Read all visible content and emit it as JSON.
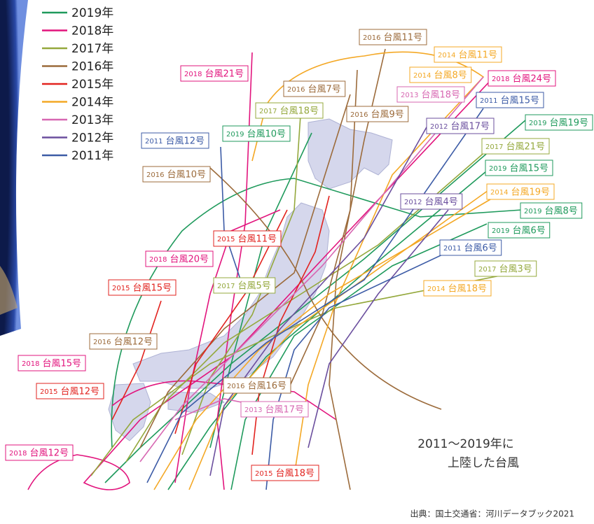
{
  "legend": {
    "items": [
      {
        "label": "2019年",
        "color": "#1f9a5c"
      },
      {
        "label": "2018年",
        "color": "#e2147d"
      },
      {
        "label": "2017年",
        "color": "#94a83c"
      },
      {
        "label": "2016年",
        "color": "#9c6b3b"
      },
      {
        "label": "2015年",
        "color": "#e2231f"
      },
      {
        "label": "2014年",
        "color": "#f4a825"
      },
      {
        "label": "2013年",
        "color": "#d767b2"
      },
      {
        "label": "2012年",
        "color": "#6b4f9e"
      },
      {
        "label": "2011年",
        "color": "#3c5ba6"
      }
    ]
  },
  "labels": [
    {
      "year": "2016",
      "name": "台風11号"
    },
    {
      "year": "2014",
      "name": "台風11号"
    },
    {
      "year": "2018",
      "name": "台風21号"
    },
    {
      "year": "2014",
      "name": "台風8号"
    },
    {
      "year": "2018",
      "name": "台風24号"
    },
    {
      "year": "2016",
      "name": "台風7号"
    },
    {
      "year": "2013",
      "name": "台風18号"
    },
    {
      "year": "2011",
      "name": "台風15号"
    },
    {
      "year": "2017",
      "name": "台風18号"
    },
    {
      "year": "2016",
      "name": "台風9号"
    },
    {
      "year": "2019",
      "name": "台風19号"
    },
    {
      "year": "2012",
      "name": "台風17号"
    },
    {
      "year": "2011",
      "name": "台風12号"
    },
    {
      "year": "2019",
      "name": "台風10号"
    },
    {
      "year": "2017",
      "name": "台風21号"
    },
    {
      "year": "2019",
      "name": "台風15号"
    },
    {
      "year": "2016",
      "name": "台風10号"
    },
    {
      "year": "2014",
      "name": "台風19号"
    },
    {
      "year": "2012",
      "name": "台風4号"
    },
    {
      "year": "2019",
      "name": "台風8号"
    },
    {
      "year": "2019",
      "name": "台風6号"
    },
    {
      "year": "2015",
      "name": "台風11号"
    },
    {
      "year": "2011",
      "name": "台風6号"
    },
    {
      "year": "2018",
      "name": "台風20号"
    },
    {
      "year": "2017",
      "name": "台風3号"
    },
    {
      "year": "2017",
      "name": "台風5号"
    },
    {
      "year": "2014",
      "name": "台風18号"
    },
    {
      "year": "2015",
      "name": "台風15号"
    },
    {
      "year": "2016",
      "name": "台風12号"
    },
    {
      "year": "2018",
      "name": "台風15号"
    },
    {
      "year": "2015",
      "name": "台風12号"
    },
    {
      "year": "2016",
      "name": "台風16号"
    },
    {
      "year": "2013",
      "name": "台風17号"
    },
    {
      "year": "2018",
      "name": "台風12号"
    },
    {
      "year": "2015",
      "name": "台風18号"
    }
  ],
  "caption": [
    "2011～2019年に",
    "上陸した台風"
  ],
  "source": "出典：国土交通省：河川データブック2021"
}
